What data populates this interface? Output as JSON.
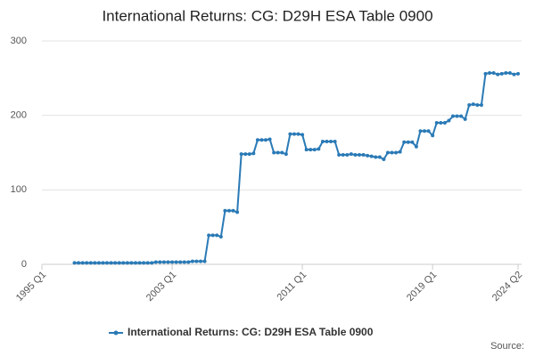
{
  "chart_data": {
    "type": "line",
    "title": "International Returns: CG: D29H ESA Table 0900",
    "categories": [
      "1995 Q1",
      null,
      null,
      null,
      null,
      null,
      null,
      null,
      null,
      null,
      null,
      null,
      null,
      null,
      null,
      null,
      null,
      null,
      null,
      null,
      null,
      null,
      null,
      null,
      null,
      null,
      null,
      null,
      null,
      null,
      null,
      null,
      "2003 Q1",
      null,
      null,
      null,
      null,
      null,
      null,
      null,
      null,
      null,
      null,
      null,
      null,
      null,
      null,
      null,
      null,
      null,
      null,
      null,
      null,
      null,
      null,
      null,
      null,
      null,
      null,
      null,
      null,
      null,
      null,
      null,
      "2011 Q1",
      null,
      null,
      null,
      null,
      null,
      null,
      null,
      null,
      null,
      null,
      null,
      null,
      null,
      null,
      null,
      null,
      null,
      null,
      null,
      null,
      null,
      null,
      null,
      null,
      null,
      null,
      null,
      null,
      null,
      null,
      null,
      "2019 Q1",
      null,
      null,
      null,
      null,
      null,
      null,
      null,
      null,
      null,
      null,
      null,
      null,
      null,
      null,
      null,
      null,
      null,
      null,
      null,
      null,
      "2024 Q2"
    ],
    "series": [
      {
        "name": "International Returns: CG: D29H ESA Table 0900",
        "color": "#2a7ab6",
        "values": [
          null,
          null,
          null,
          null,
          null,
          null,
          null,
          null,
          2,
          2,
          2,
          2,
          2,
          2,
          2,
          2,
          2,
          2,
          2,
          2,
          2,
          2,
          2,
          2,
          2,
          2,
          2,
          2,
          3,
          3,
          3,
          3,
          3,
          3,
          3,
          3,
          3,
          4,
          4,
          4,
          4,
          39,
          39,
          39,
          37,
          72,
          72,
          72,
          70,
          148,
          148,
          148,
          149,
          167,
          167,
          167,
          168,
          150,
          150,
          150,
          148,
          175,
          175,
          175,
          174,
          154,
          154,
          154,
          155,
          165,
          165,
          165,
          165,
          147,
          147,
          147,
          148,
          147,
          147,
          147,
          146,
          145,
          144,
          144,
          141,
          150,
          150,
          150,
          151,
          164,
          164,
          164,
          158,
          179,
          179,
          179,
          173,
          190,
          190,
          190,
          193,
          199,
          199,
          199,
          195,
          214,
          215,
          214,
          214,
          256,
          257,
          257,
          255,
          256,
          257,
          257,
          255,
          256
        ]
      }
    ],
    "ylim": [
      0,
      300
    ],
    "yticks": [
      0,
      100,
      200,
      300
    ],
    "grid": true,
    "legend": "bottom",
    "source": "Source:"
  }
}
